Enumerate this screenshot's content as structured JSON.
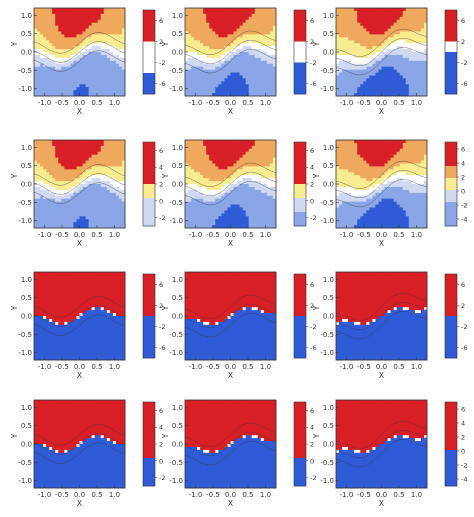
{
  "chart_data": {
    "type": "heatmap",
    "grid": {
      "rows": 4,
      "cols": 3
    },
    "colors": {
      "red": "#d81f26",
      "blue": "#2f5bd6",
      "yellow": "#f7ec8f",
      "pale_blue": "#cfd9f2",
      "light_blue": "#8aa6e6",
      "orange": "#efa95e",
      "white": "#ffffff",
      "axis": "#333333"
    },
    "panels": [
      {
        "row": 0,
        "col": 0,
        "style": "pastel",
        "twist": 0.35,
        "xlabel": "X",
        "ylabel": "Y",
        "xticks": [
          "-1.0",
          "-0.5",
          "0.0",
          "0.5",
          "1.0"
        ],
        "yticks": [
          "1.0",
          "0.5",
          "0.0",
          "-0.5",
          "-1.0"
        ],
        "xlim": [
          -1.3,
          1.3
        ],
        "ylim": [
          -1.2,
          1.2
        ],
        "colorbar": {
          "ticks": [
            "6",
            "2",
            "-2",
            "-6"
          ],
          "bands": [
            "red",
            "red",
            "red",
            "white",
            "white",
            "white",
            "blue",
            "blue"
          ]
        }
      },
      {
        "row": 0,
        "col": 1,
        "style": "pastel",
        "twist": 0.55,
        "xlabel": "X",
        "ylabel": "Y",
        "xticks": [
          "-1.0",
          "-0.5",
          "0.0",
          "0.5",
          "1.0"
        ],
        "yticks": [
          "1.0",
          "0.5",
          "0.0",
          "-0.5",
          "-1.0"
        ],
        "xlim": [
          -1.3,
          1.3
        ],
        "ylim": [
          -1.2,
          1.2
        ],
        "colorbar": {
          "ticks": [
            "6",
            "2",
            "-2",
            "-6"
          ],
          "bands": [
            "red",
            "red",
            "red",
            "white",
            "white",
            "blue",
            "blue",
            "blue"
          ]
        }
      },
      {
        "row": 0,
        "col": 2,
        "style": "pastel",
        "twist": 0.8,
        "xlabel": "X",
        "ylabel": "Y",
        "xticks": [
          "-1.0",
          "-0.5",
          "0.0",
          "0.5",
          "1.0"
        ],
        "yticks": [
          "1.0",
          "0.5",
          "0.0",
          "-0.5",
          "-1.0"
        ],
        "xlim": [
          -1.3,
          1.3
        ],
        "ylim": [
          -1.2,
          1.2
        ],
        "colorbar": {
          "ticks": [
            "6",
            "2",
            "-2",
            "-6"
          ],
          "bands": [
            "red",
            "red",
            "red",
            "white",
            "blue",
            "blue",
            "blue",
            "blue"
          ]
        }
      },
      {
        "row": 1,
        "col": 0,
        "style": "pastel",
        "twist": 0.35,
        "xlabel": "X",
        "ylabel": "Y",
        "xticks": [
          "-1.0",
          "-0.5",
          "0.0",
          "0.5",
          "1.0"
        ],
        "yticks": [
          "1.0",
          "0.5",
          "0.0",
          "-0.5",
          "-1.0"
        ],
        "xlim": [
          -1.3,
          1.3
        ],
        "ylim": [
          -1.2,
          1.2
        ],
        "colorbar": {
          "ticks": [
            "6",
            "4",
            "2",
            "0",
            "-2"
          ],
          "bands": [
            "red",
            "red",
            "red",
            "yellow",
            "pale_blue",
            "pale_blue"
          ]
        }
      },
      {
        "row": 1,
        "col": 1,
        "style": "pastel",
        "twist": 0.55,
        "xlabel": "X",
        "ylabel": "Y",
        "xticks": [
          "-1.0",
          "-0.5",
          "0.0",
          "0.5",
          "1.0"
        ],
        "yticks": [
          "1.0",
          "0.5",
          "0.0",
          "-0.5",
          "-1.0"
        ],
        "xlim": [
          -1.3,
          1.3
        ],
        "ylim": [
          -1.2,
          1.2
        ],
        "colorbar": {
          "ticks": [
            "6",
            "4",
            "2",
            "0",
            "-2"
          ],
          "bands": [
            "red",
            "red",
            "red",
            "yellow",
            "pale_blue",
            "light_blue"
          ]
        }
      },
      {
        "row": 1,
        "col": 2,
        "style": "pastel",
        "twist": 0.8,
        "xlabel": "X",
        "ylabel": "Y",
        "xticks": [
          "-1.0",
          "-0.5",
          "0.0",
          "0.5",
          "1.0"
        ],
        "yticks": [
          "1.0",
          "0.5",
          "0.0",
          "-0.5",
          "-1.0"
        ],
        "xlim": [
          -1.3,
          1.3
        ],
        "ylim": [
          -1.2,
          1.2
        ],
        "colorbar": {
          "ticks": [
            "6",
            "4",
            "2",
            "0",
            "-2",
            "-4"
          ],
          "bands": [
            "red",
            "red",
            "orange",
            "yellow",
            "pale_blue",
            "light_blue",
            "light_blue"
          ]
        }
      },
      {
        "row": 2,
        "col": 0,
        "style": "strong",
        "twist": 0.35,
        "xlabel": "X",
        "ylabel": "Y",
        "xticks": [
          "-1.0",
          "-0.5",
          "0.0",
          "0.5",
          "1.0"
        ],
        "yticks": [
          "1.0",
          "0.5",
          "0.0",
          "-0.5",
          "-1.0"
        ],
        "xlim": [
          -1.3,
          1.3
        ],
        "ylim": [
          -1.2,
          1.2
        ],
        "colorbar": {
          "ticks": [
            "6",
            "2",
            "-2",
            "-6"
          ],
          "bands": [
            "red",
            "red",
            "red",
            "red",
            "blue",
            "blue",
            "blue",
            "blue"
          ]
        }
      },
      {
        "row": 2,
        "col": 1,
        "style": "strong",
        "twist": 0.55,
        "xlabel": "X",
        "ylabel": "Y",
        "xticks": [
          "-1.0",
          "-0.5",
          "0.0",
          "0.5",
          "1.0"
        ],
        "yticks": [
          "1.0",
          "0.5",
          "0.0",
          "-0.5",
          "-1.0"
        ],
        "xlim": [
          -1.3,
          1.3
        ],
        "ylim": [
          -1.2,
          1.2
        ],
        "colorbar": {
          "ticks": [
            "6",
            "2",
            "-2",
            "-6"
          ],
          "bands": [
            "red",
            "red",
            "red",
            "red",
            "blue",
            "blue",
            "blue",
            "blue"
          ]
        }
      },
      {
        "row": 2,
        "col": 2,
        "style": "strong",
        "twist": 0.8,
        "xlabel": "X",
        "ylabel": "Y",
        "xticks": [
          "-1.0",
          "-0.5",
          "0.0",
          "0.5",
          "1.0"
        ],
        "yticks": [
          "1.0",
          "0.5",
          "0.0",
          "-0.5",
          "-1.0"
        ],
        "xlim": [
          -1.3,
          1.3
        ],
        "ylim": [
          -1.2,
          1.2
        ],
        "colorbar": {
          "ticks": [
            "6",
            "2",
            "-2",
            "-6"
          ],
          "bands": [
            "red",
            "red",
            "red",
            "red",
            "blue",
            "blue",
            "blue",
            "blue"
          ]
        }
      },
      {
        "row": 3,
        "col": 0,
        "style": "strong",
        "twist": 0.35,
        "xlabel": "X",
        "ylabel": "Y",
        "xticks": [
          "-1.0",
          "-0.5",
          "0.0",
          "0.5",
          "1.0"
        ],
        "yticks": [
          "1.0",
          "0.5",
          "0.0",
          "-0.5",
          "-1.0"
        ],
        "xlim": [
          -1.3,
          1.3
        ],
        "ylim": [
          -1.2,
          1.2
        ],
        "colorbar": {
          "ticks": [
            "6",
            "4",
            "2",
            "0",
            "-2"
          ],
          "bands": [
            "red",
            "red",
            "red",
            "red",
            "blue",
            "blue"
          ]
        }
      },
      {
        "row": 3,
        "col": 1,
        "style": "strong",
        "twist": 0.55,
        "xlabel": "X",
        "ylabel": "Y",
        "xticks": [
          "-1.0",
          "-0.5",
          "0.0",
          "0.5",
          "1.0"
        ],
        "yticks": [
          "1.0",
          "0.5",
          "0.0",
          "-0.5",
          "-1.0"
        ],
        "xlim": [
          -1.3,
          1.3
        ],
        "ylim": [
          -1.2,
          1.2
        ],
        "colorbar": {
          "ticks": [
            "6",
            "4",
            "2",
            "0",
            "-2"
          ],
          "bands": [
            "red",
            "red",
            "red",
            "red",
            "blue",
            "blue"
          ]
        }
      },
      {
        "row": 3,
        "col": 2,
        "style": "strong",
        "twist": 0.8,
        "xlabel": "X",
        "ylabel": "Y",
        "xticks": [
          "-1.0",
          "-0.5",
          "0.0",
          "0.5",
          "1.0"
        ],
        "yticks": [
          "1.0",
          "0.5",
          "0.0",
          "-0.5",
          "-1.0"
        ],
        "xlim": [
          -1.3,
          1.3
        ],
        "ylim": [
          -1.2,
          1.2
        ],
        "colorbar": {
          "ticks": [
            "6",
            "4",
            "2",
            "0",
            "-2",
            "-4"
          ],
          "bands": [
            "red",
            "red",
            "red",
            "red",
            "blue",
            "blue",
            "blue"
          ]
        }
      }
    ]
  }
}
